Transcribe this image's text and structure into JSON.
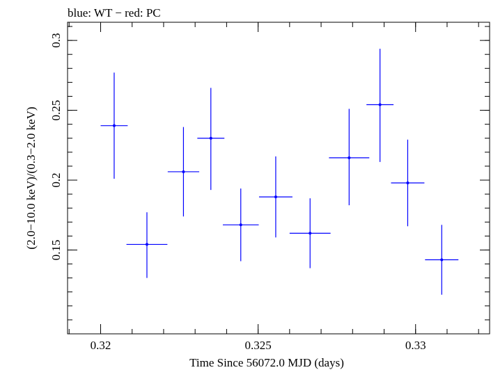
{
  "chart_data": {
    "type": "scatter",
    "title": "blue: WT − red: PC",
    "xlabel": "Time Since 56072.0 MJD (days)",
    "ylabel": "(2.0−10.0 keV)/(0.3−2.0 keV)",
    "xlim": [
      0.31895,
      0.33235
    ],
    "ylim": [
      0.09,
      0.313
    ],
    "x_ticks": [
      0.32,
      0.325,
      0.33
    ],
    "x_tick_labels": [
      "0.32",
      "0.325",
      "0.33"
    ],
    "y_ticks": [
      0.15,
      0.2,
      0.25,
      0.3
    ],
    "y_tick_labels": [
      "0.15",
      "0.2",
      "0.25",
      "0.3"
    ],
    "x_minor_step": 0.001,
    "y_minor_step": 0.01,
    "grid": false,
    "series": [
      {
        "color": "#0000ff",
        "points": [
          {
            "x": 0.32043,
            "xerr": 0.00043,
            "y": 0.239,
            "yerr_low": 0.038,
            "yerr_high": 0.038
          },
          {
            "x": 0.32147,
            "xerr": 0.00065,
            "y": 0.154,
            "yerr_low": 0.024,
            "yerr_high": 0.023
          },
          {
            "x": 0.32263,
            "xerr": 0.0005,
            "y": 0.206,
            "yerr_low": 0.032,
            "yerr_high": 0.032
          },
          {
            "x": 0.3235,
            "xerr": 0.00043,
            "y": 0.23,
            "yerr_low": 0.037,
            "yerr_high": 0.036
          },
          {
            "x": 0.32445,
            "xerr": 0.00057,
            "y": 0.168,
            "yerr_low": 0.026,
            "yerr_high": 0.026
          },
          {
            "x": 0.32556,
            "xerr": 0.00053,
            "y": 0.188,
            "yerr_low": 0.029,
            "yerr_high": 0.029
          },
          {
            "x": 0.32665,
            "xerr": 0.00065,
            "y": 0.162,
            "yerr_low": 0.025,
            "yerr_high": 0.025
          },
          {
            "x": 0.32789,
            "xerr": 0.00064,
            "y": 0.216,
            "yerr_low": 0.034,
            "yerr_high": 0.035
          },
          {
            "x": 0.32887,
            "xerr": 0.00043,
            "y": 0.254,
            "yerr_low": 0.041,
            "yerr_high": 0.04
          },
          {
            "x": 0.32975,
            "xerr": 0.00053,
            "y": 0.198,
            "yerr_low": 0.031,
            "yerr_high": 0.031
          },
          {
            "x": 0.33083,
            "xerr": 0.00053,
            "y": 0.143,
            "yerr_low": 0.025,
            "yerr_high": 0.025
          }
        ]
      }
    ]
  }
}
